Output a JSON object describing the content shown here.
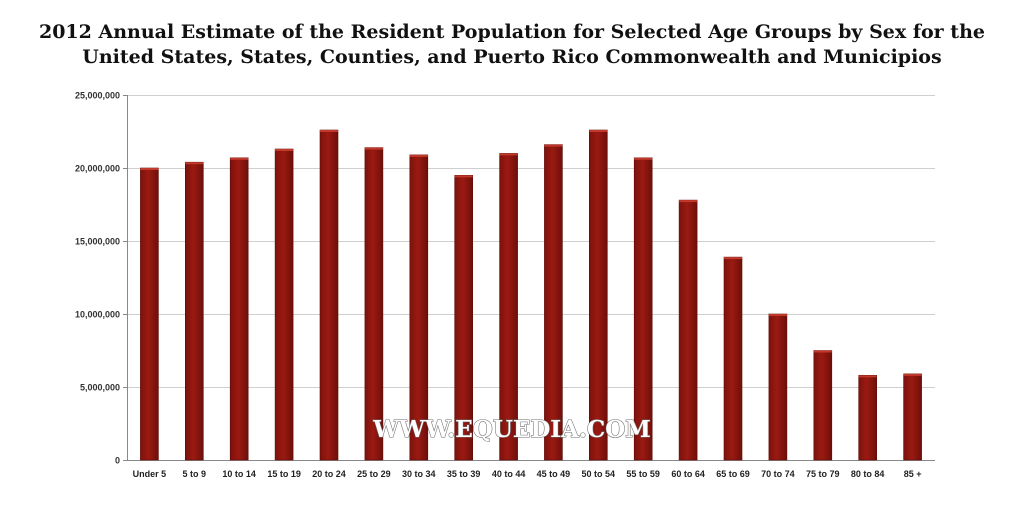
{
  "chart_data": {
    "type": "bar",
    "title_line1": "2012 Annual Estimate of the Resident Population for Selected Age Groups by Sex for the",
    "title_line2": "United States, States, Counties, and Puerto Rico Commonwealth and Municipios",
    "categories": [
      "Under 5",
      "5 to 9",
      "10 to 14",
      "15 to 19",
      "20 to 24",
      "25 to 29",
      "30 to 34",
      "35 to 39",
      "40 to 44",
      "45 to 49",
      "50 to 54",
      "55 to 59",
      "60 to 64",
      "65 to 69",
      "70 to 74",
      "75 to 79",
      "80 to 84",
      "85 +"
    ],
    "values": [
      20000000,
      20400000,
      20700000,
      21300000,
      22600000,
      21400000,
      20900000,
      19500000,
      21000000,
      21600000,
      22600000,
      20700000,
      17800000,
      13900000,
      10000000,
      7500000,
      5800000,
      5900000
    ],
    "ylim": [
      0,
      25000000
    ],
    "yticks": [
      0,
      5000000,
      10000000,
      15000000,
      20000000,
      25000000
    ],
    "ytick_labels": [
      "0",
      "5,000,000",
      "10,000,000",
      "15,000,000",
      "20,000,000",
      "25,000,000"
    ],
    "xlabel": "",
    "ylabel": "",
    "grid": true,
    "legend": "none",
    "bar_color": "#9b1a12",
    "watermark": "WWW.EQUEDIA.COM"
  }
}
